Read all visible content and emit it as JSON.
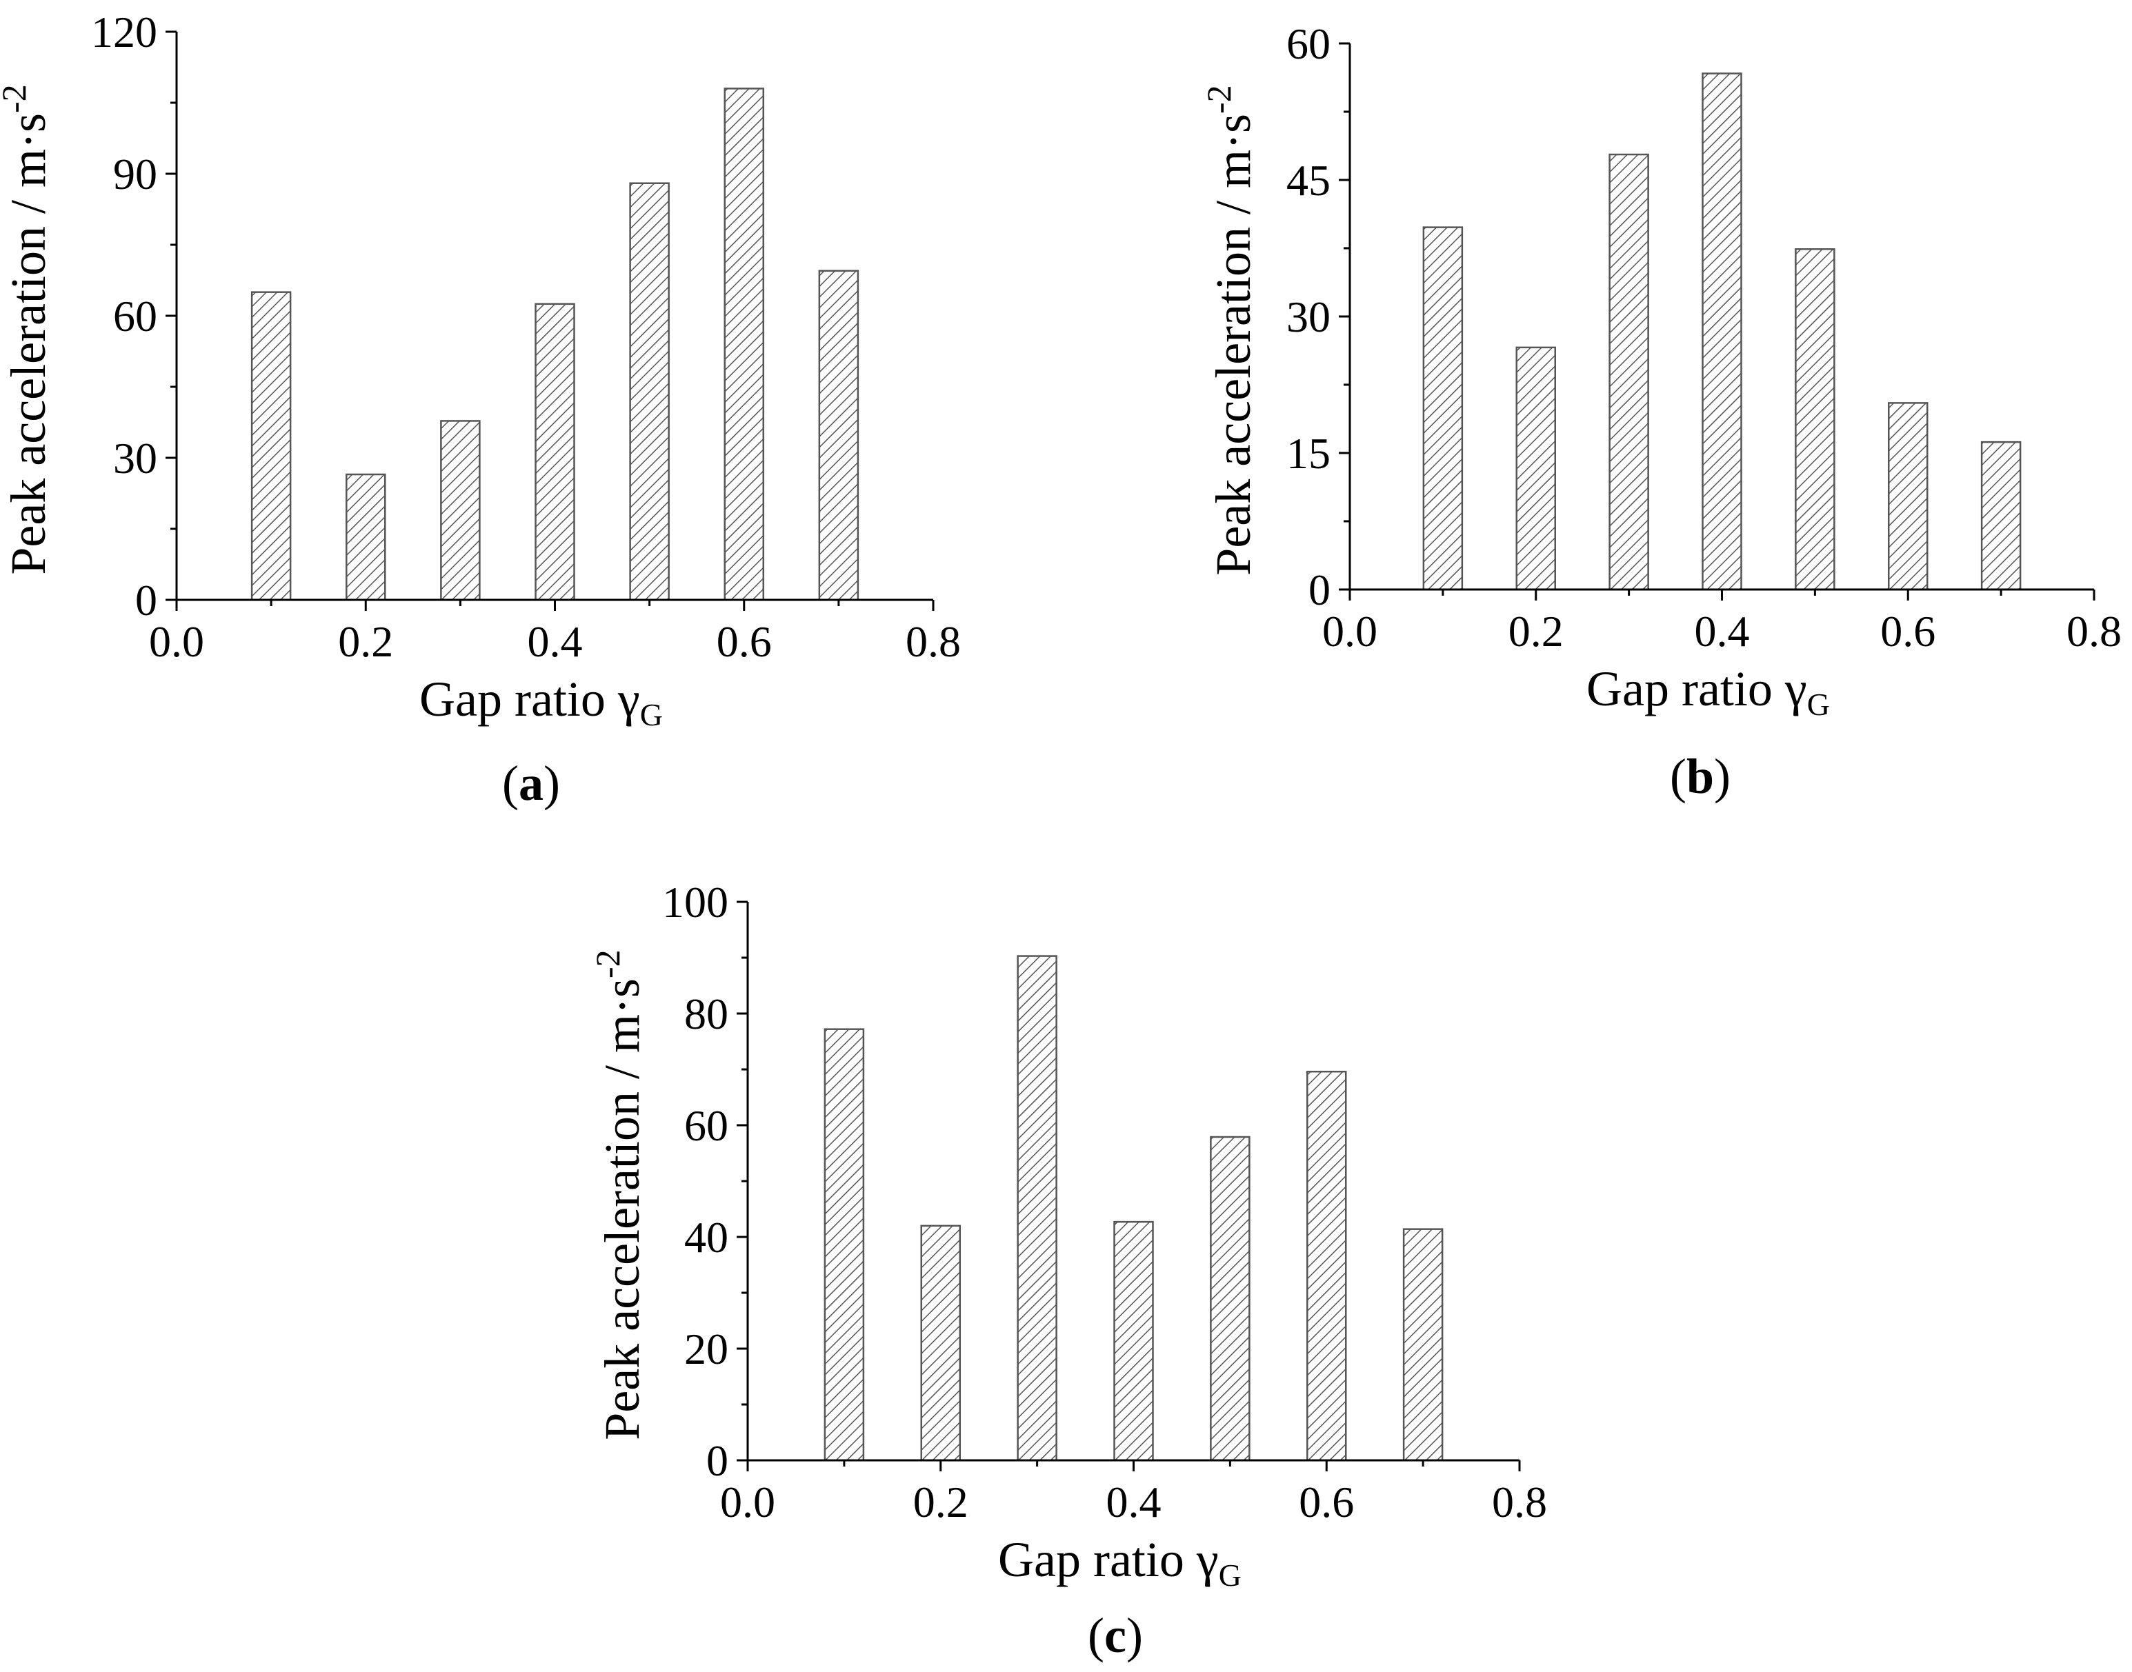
{
  "figure": {
    "background": "#ffffff",
    "bar_fill_pattern": "diagonal-hatch",
    "bar_stroke_color": "#555555",
    "axis_color": "#000000"
  },
  "chart_data": [
    {
      "type": "bar",
      "panel_label": {
        "open": "(",
        "letter": "a",
        "close": ")"
      },
      "xlabel": {
        "text": "Gap ratio γ",
        "subscript": "G"
      },
      "ylabel": {
        "text": "Peak acceleration / m·s",
        "superscript": "-2"
      },
      "x": [
        0.1,
        0.2,
        0.3,
        0.4,
        0.5,
        0.6,
        0.7
      ],
      "values": [
        65,
        26.5,
        37.8,
        62.5,
        88,
        108,
        69.5
      ],
      "xlim": [
        0.0,
        0.8
      ],
      "ylim": [
        0,
        120
      ],
      "xticks": [
        0.0,
        0.2,
        0.4,
        0.6,
        0.8
      ],
      "xtick_labels": [
        "0.0",
        "0.2",
        "0.4",
        "0.6",
        "0.8"
      ],
      "yticks": [
        0,
        30,
        60,
        90,
        120
      ],
      "ytick_labels": [
        "0",
        "30",
        "60",
        "90",
        "120"
      ],
      "grid": false,
      "legend": "none"
    },
    {
      "type": "bar",
      "panel_label": {
        "open": "(",
        "letter": "b",
        "close": ")"
      },
      "xlabel": {
        "text": "Gap ratio γ",
        "subscript": "G"
      },
      "ylabel": {
        "text": "Peak acceleration / m·s",
        "superscript": "-2"
      },
      "x": [
        0.1,
        0.2,
        0.3,
        0.4,
        0.5,
        0.6,
        0.7
      ],
      "values": [
        39.8,
        26.6,
        47.8,
        56.7,
        37.4,
        20.5,
        16.2
      ],
      "xlim": [
        0.0,
        0.8
      ],
      "ylim": [
        0,
        60
      ],
      "xticks": [
        0.0,
        0.2,
        0.4,
        0.6,
        0.8
      ],
      "xtick_labels": [
        "0.0",
        "0.2",
        "0.4",
        "0.6",
        "0.8"
      ],
      "yticks": [
        0,
        15,
        30,
        45,
        60
      ],
      "ytick_labels": [
        "0",
        "15",
        "30",
        "45",
        "60"
      ],
      "grid": false,
      "legend": "none"
    },
    {
      "type": "bar",
      "panel_label": {
        "open": "(",
        "letter": "c",
        "close": ")"
      },
      "xlabel": {
        "text": "Gap ratio γ",
        "subscript": "G"
      },
      "ylabel": {
        "text": "Peak acceleration / m·s",
        "superscript": "-2"
      },
      "x": [
        0.1,
        0.2,
        0.3,
        0.4,
        0.5,
        0.6,
        0.7
      ],
      "values": [
        77.2,
        42,
        90.3,
        42.7,
        57.9,
        69.6,
        41.4
      ],
      "xlim": [
        0.0,
        0.8
      ],
      "ylim": [
        0,
        100
      ],
      "xticks": [
        0.0,
        0.2,
        0.4,
        0.6,
        0.8
      ],
      "xtick_labels": [
        "0.0",
        "0.2",
        "0.4",
        "0.6",
        "0.8"
      ],
      "yticks": [
        0,
        20,
        40,
        60,
        80,
        100
      ],
      "ytick_labels": [
        "0",
        "20",
        "40",
        "60",
        "80",
        "100"
      ],
      "grid": false,
      "legend": "none"
    }
  ]
}
